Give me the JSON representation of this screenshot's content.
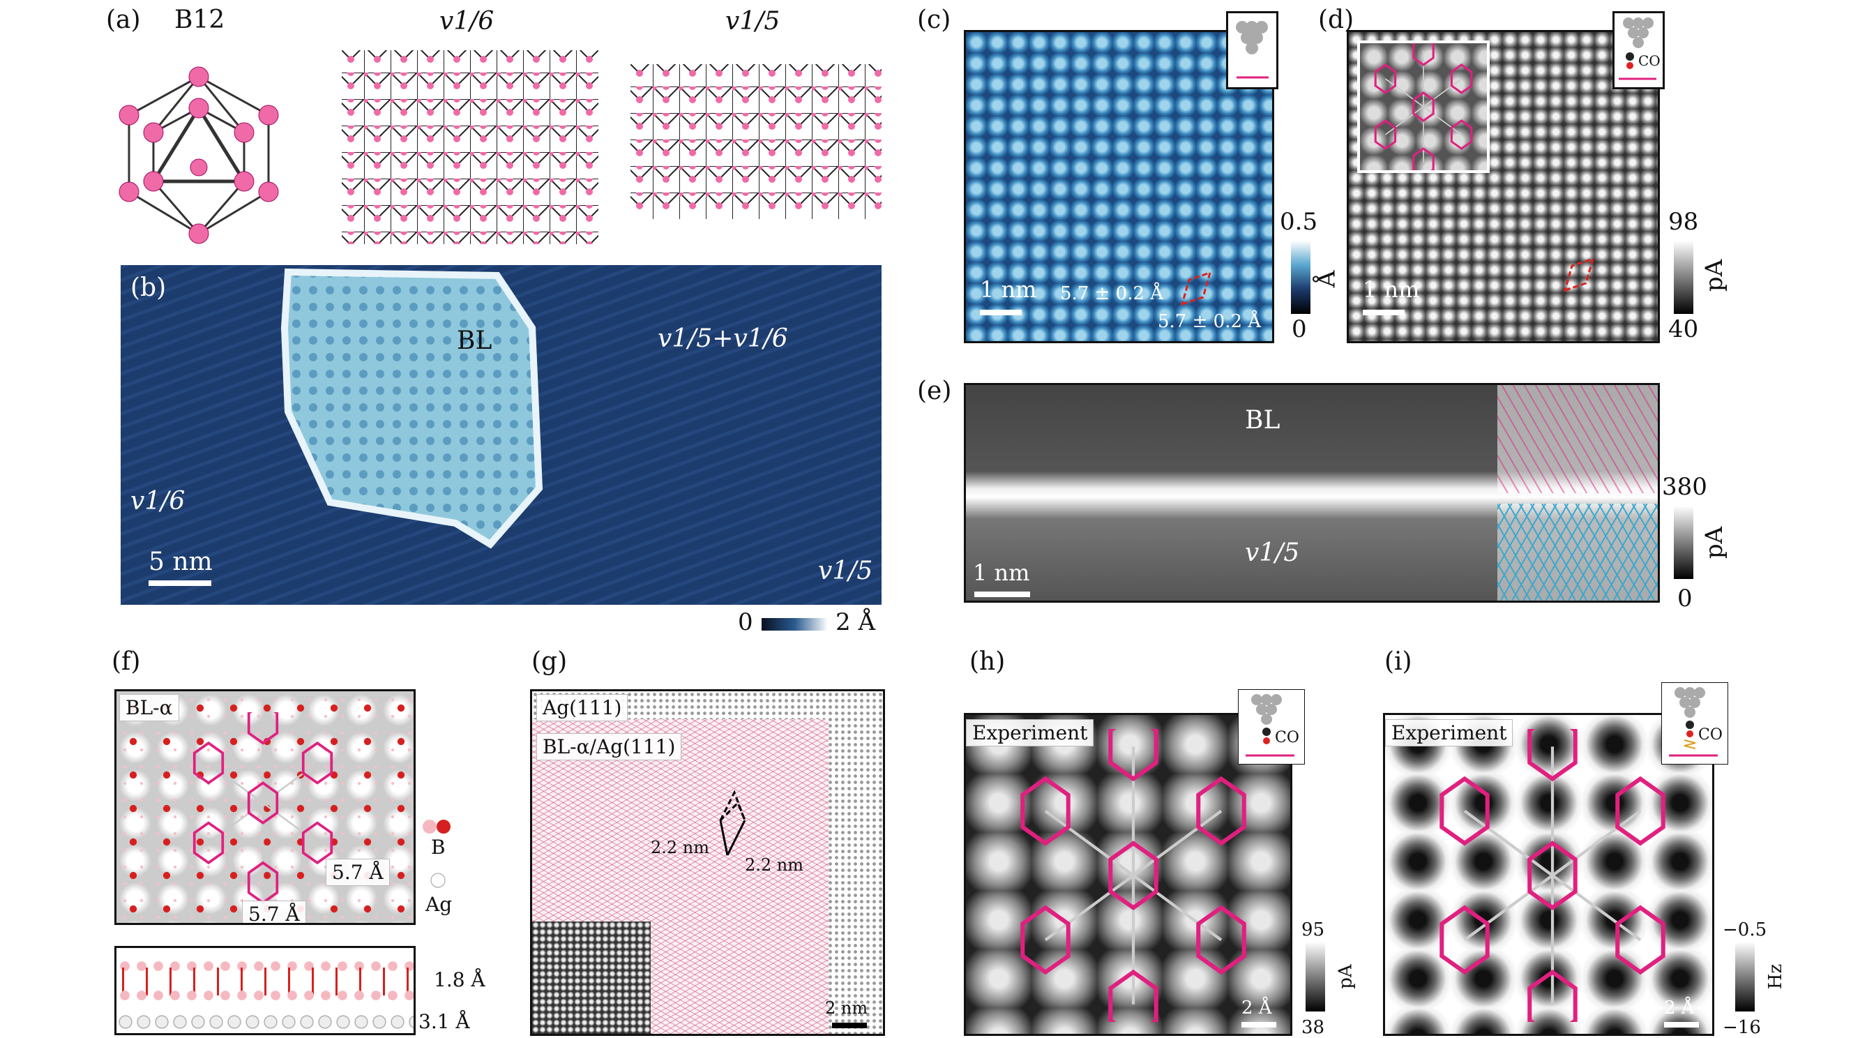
{
  "panels": {
    "a": {
      "label": "(a)",
      "title": "B12",
      "v16": "v1/6",
      "v15": "v1/5"
    },
    "b": {
      "label": "(b)",
      "bl": "BL",
      "mixed": "v1/5+v1/6",
      "v16": "v1/6",
      "v15": "v1/5",
      "scale": "5 nm",
      "cb_min": "0",
      "cb_max": "2 Å"
    },
    "c": {
      "label": "(c)",
      "dist1": "5.7 ± 0.2 Å",
      "dist2": "5.7 ± 0.2 Å",
      "scale": "1 nm",
      "cb_max": "0.5",
      "cb_min": "0",
      "unit": "Å"
    },
    "d": {
      "label": "(d)",
      "tip": "CO",
      "scale": "1 nm",
      "cb_max": "98",
      "cb_min": "40",
      "unit": "pA"
    },
    "e": {
      "label": "(e)",
      "bl": "BL",
      "v15": "v1/5",
      "scale": "1 nm",
      "cb_max": "380",
      "cb_min": "0",
      "unit": "pA"
    },
    "f": {
      "label": "(f)",
      "tag": "BL-α",
      "d1": "5.7 Å",
      "d2": "5.7 Å",
      "legend_b": "B",
      "legend_ag": "Ag",
      "h1": "1.8 Å",
      "h2": "3.1 Å"
    },
    "g": {
      "label": "(g)",
      "tag1": "Ag(111)",
      "tag2": "BL-α/Ag(111)",
      "d1": "2.2 nm",
      "d2": "2.2 nm",
      "scale": "2 nm"
    },
    "h": {
      "label": "(h)",
      "tag": "Experiment",
      "tip": "CO",
      "scale": "2 Å",
      "cb_max": "95",
      "cb_min": "38",
      "unit": "pA"
    },
    "i": {
      "label": "(i)",
      "tag": "Experiment",
      "tip": "CO",
      "scale": "2 Å",
      "cb_max": "−0.5",
      "cb_min": "−16",
      "unit": "Hz"
    }
  },
  "colors": {
    "magenta": "#e0207f",
    "blue": "#2a5b8f",
    "red": "#d62020",
    "cyan": "#3aa8d0"
  }
}
